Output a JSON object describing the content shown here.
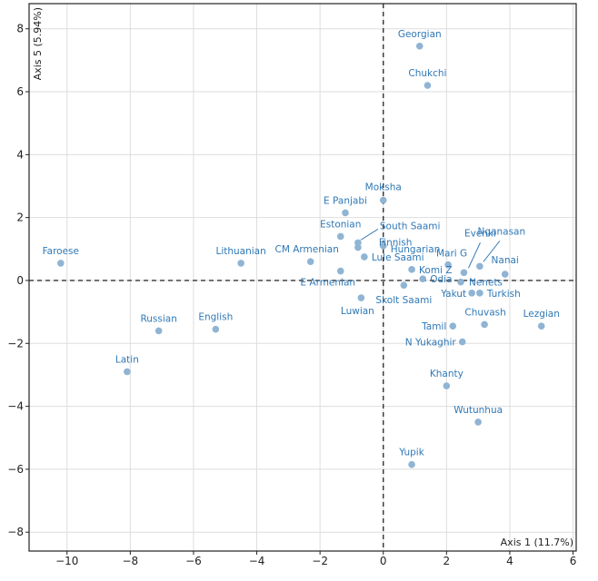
{
  "chart_data": {
    "type": "scatter",
    "title": "",
    "xlabel": "Axis 1 (11.7%)",
    "ylabel": "Axis 5 (5.94%)",
    "xlim": [
      -11.2,
      6.1
    ],
    "ylim": [
      -8.6,
      8.8
    ],
    "xticks": [
      -10,
      -8,
      -6,
      -4,
      -2,
      0,
      2,
      4,
      6
    ],
    "yticks": [
      -8,
      -6,
      -4,
      -2,
      0,
      2,
      4,
      6,
      8
    ],
    "xtick_labels": [
      "−10",
      "−8",
      "−6",
      "−4",
      "−2",
      "0",
      "2",
      "4",
      "6"
    ],
    "ytick_labels": [
      "−8",
      "−6",
      "−4",
      "−2",
      "0",
      "2",
      "4",
      "6",
      "8"
    ],
    "grid": true,
    "reference_lines": {
      "x": 0,
      "y": 0,
      "style": "dashed"
    },
    "colors": {
      "point": "#8fb4d4",
      "label": "#2f78b6",
      "grid": "#dddddd",
      "frame": "#222222",
      "reference": "#333333"
    },
    "points": [
      {
        "label": "Georgian",
        "x": 1.15,
        "y": 7.45
      },
      {
        "label": "Chukchi",
        "x": 1.4,
        "y": 6.2
      },
      {
        "label": "Moksha",
        "x": 0.0,
        "y": 2.55
      },
      {
        "label": "E Panjabi",
        "x": -1.2,
        "y": 2.15
      },
      {
        "label": "Estonian",
        "x": -1.35,
        "y": 1.4
      },
      {
        "label": "South Saami",
        "x": -0.8,
        "y": 1.2
      },
      {
        "label": "Finnish",
        "x": -0.8,
        "y": 1.05
      },
      {
        "label": "Hungarian",
        "x": 0.0,
        "y": 1.1
      },
      {
        "label": "Lule Saami",
        "x": -0.6,
        "y": 0.75
      },
      {
        "label": "CM Armenian",
        "x": -2.3,
        "y": 0.6
      },
      {
        "label": "E Armenian",
        "x": -1.35,
        "y": 0.3
      },
      {
        "label": "Luwian",
        "x": -0.7,
        "y": -0.55
      },
      {
        "label": "Skolt Saami",
        "x": 0.65,
        "y": -0.15
      },
      {
        "label": "Komi Z",
        "x": 0.9,
        "y": 0.35
      },
      {
        "label": "Odia",
        "x": 1.25,
        "y": 0.05
      },
      {
        "label": "Mari G",
        "x": 2.05,
        "y": 0.5
      },
      {
        "label": "Evenki",
        "x": 2.55,
        "y": 0.25
      },
      {
        "label": "Nenets",
        "x": 2.45,
        "y": -0.05
      },
      {
        "label": "Nganasan",
        "x": 3.05,
        "y": 0.45
      },
      {
        "label": "Nanai",
        "x": 3.85,
        "y": 0.2
      },
      {
        "label": "Yakut",
        "x": 2.8,
        "y": -0.4
      },
      {
        "label": "Turkish",
        "x": 3.05,
        "y": -0.4
      },
      {
        "label": "Tamil",
        "x": 2.2,
        "y": -1.45
      },
      {
        "label": "Chuvash",
        "x": 3.2,
        "y": -1.4
      },
      {
        "label": "Lezgian",
        "x": 5.0,
        "y": -1.45
      },
      {
        "label": "N Yukaghir",
        "x": 2.5,
        "y": -1.95
      },
      {
        "label": "Khanty",
        "x": 2.0,
        "y": -3.35
      },
      {
        "label": "Wutunhua",
        "x": 3.0,
        "y": -4.5
      },
      {
        "label": "Yupik",
        "x": 0.9,
        "y": -5.85
      },
      {
        "label": "Faroese",
        "x": -10.2,
        "y": 0.55
      },
      {
        "label": "Lithuanian",
        "x": -4.5,
        "y": 0.55
      },
      {
        "label": "Russian",
        "x": -7.1,
        "y": -1.6
      },
      {
        "label": "English",
        "x": -5.3,
        "y": -1.55
      },
      {
        "label": "Latin",
        "x": -8.1,
        "y": -2.9
      }
    ]
  }
}
